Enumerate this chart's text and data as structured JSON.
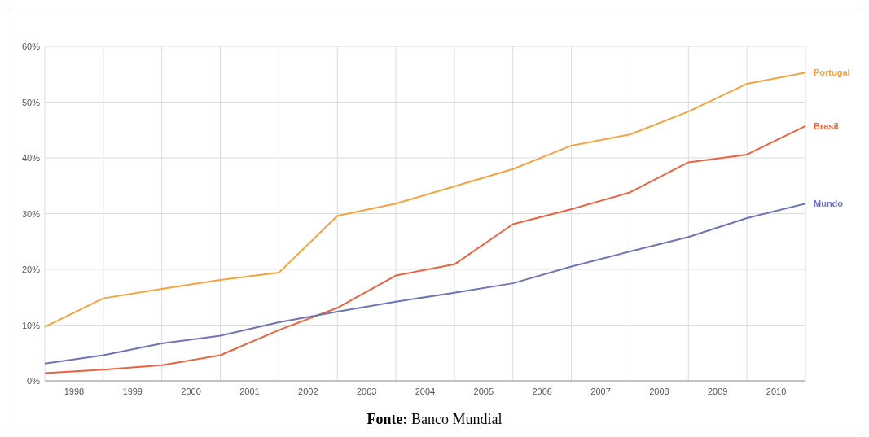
{
  "chart_data": {
    "type": "line",
    "annotations": [
      "Fonte: Banco Mundial"
    ],
    "x": [
      1998,
      1999,
      2000,
      2001,
      2002,
      2003,
      2004,
      2005,
      2006,
      2007,
      2008,
      2009,
      2010,
      2011
    ],
    "xlim": [
      1998,
      2011
    ],
    "xticks": [
      {
        "value": 1998,
        "label": null
      },
      {
        "value": 1998.5,
        "label": "1998"
      },
      {
        "value": 1999,
        "label": null
      },
      {
        "value": 1999.5,
        "label": "1999"
      },
      {
        "value": 2000,
        "label": null
      },
      {
        "value": 2000.5,
        "label": "2000"
      },
      {
        "value": 2001,
        "label": null
      },
      {
        "value": 2001.5,
        "label": "2001"
      },
      {
        "value": 2002,
        "label": null
      },
      {
        "value": 2002.5,
        "label": "2002"
      },
      {
        "value": 2003,
        "label": null
      },
      {
        "value": 2003.5,
        "label": "2003"
      },
      {
        "value": 2004,
        "label": null
      },
      {
        "value": 2004.5,
        "label": "2004"
      },
      {
        "value": 2005,
        "label": null
      },
      {
        "value": 2005.5,
        "label": "2005"
      },
      {
        "value": 2006,
        "label": null
      },
      {
        "value": 2006.5,
        "label": "2006"
      },
      {
        "value": 2007,
        "label": null
      },
      {
        "value": 2007.5,
        "label": "2007"
      },
      {
        "value": 2008,
        "label": null
      },
      {
        "value": 2008.5,
        "label": "2008"
      },
      {
        "value": 2009,
        "label": null
      },
      {
        "value": 2009.5,
        "label": "2009"
      },
      {
        "value": 2010,
        "label": null
      },
      {
        "value": 2010.5,
        "label": "2010"
      },
      {
        "value": 2011,
        "label": null
      }
    ],
    "ylim": [
      0,
      60
    ],
    "yticks": [
      {
        "value": 0,
        "label": "0%"
      },
      {
        "value": 10,
        "label": "10%"
      },
      {
        "value": 20,
        "label": "20%"
      },
      {
        "value": 30,
        "label": "30%"
      },
      {
        "value": 40,
        "label": "40%"
      },
      {
        "value": 50,
        "label": "50%"
      },
      {
        "value": 60,
        "label": "60%"
      }
    ],
    "grid": true,
    "line_style": "solid",
    "series": [
      {
        "name": "Portugal",
        "color": "#f4a340",
        "values": [
          9.7,
          14.8,
          16.5,
          18.1,
          19.4,
          29.6,
          31.8,
          34.9,
          38.0,
          42.2,
          44.2,
          48.3,
          53.3,
          55.3
        ]
      },
      {
        "name": "Brasil",
        "color": "#e8633f",
        "values": [
          1.4,
          2.0,
          2.8,
          4.6,
          9.1,
          13.1,
          18.9,
          20.9,
          28.1,
          30.8,
          33.8,
          39.2,
          40.6,
          45.7
        ]
      },
      {
        "name": "Mundo",
        "color": "#6f74b8",
        "values": [
          3.1,
          4.6,
          6.7,
          8.1,
          10.5,
          12.4,
          14.2,
          15.8,
          17.5,
          20.5,
          23.2,
          25.8,
          29.2,
          31.8
        ]
      }
    ]
  }
}
